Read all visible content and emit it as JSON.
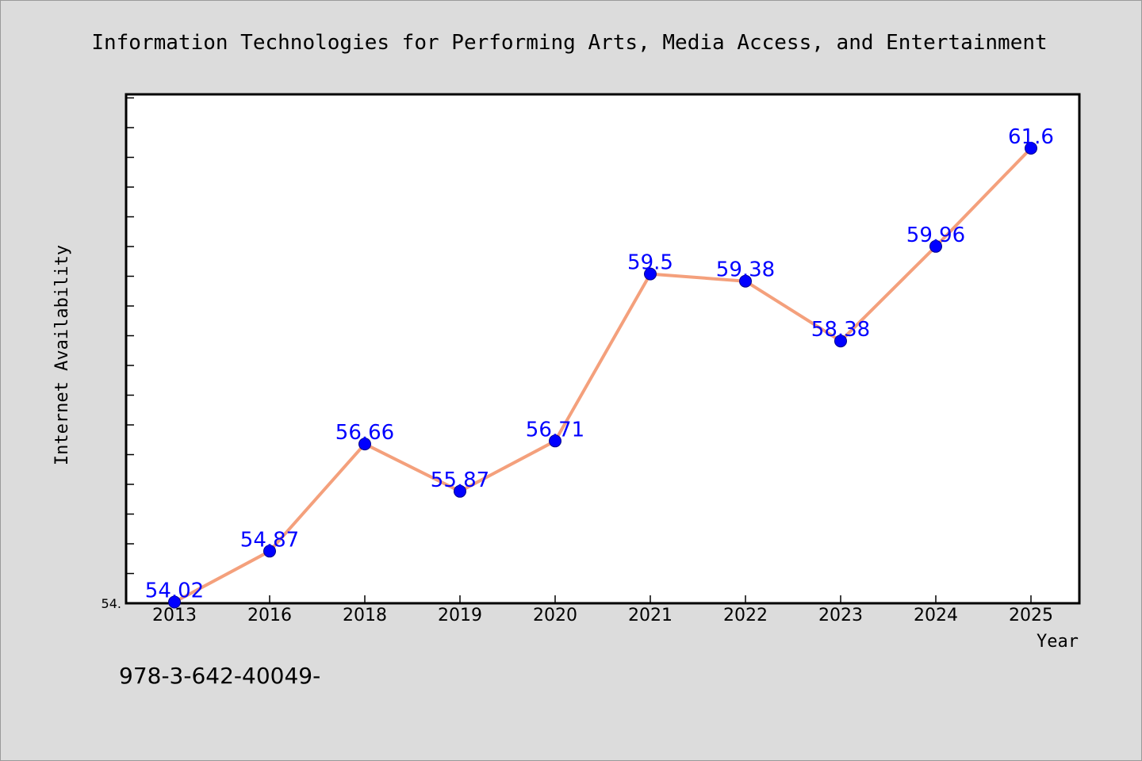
{
  "footer_text": "978-3-642-40049-",
  "chart_data": {
    "type": "line",
    "title": "Information Technologies for Performing Arts, Media Access, and Entertainment",
    "xlabel": "Year",
    "ylabel": "Internet Availability",
    "categories": [
      "2013",
      "2016",
      "2018",
      "2019",
      "2020",
      "2021",
      "2022",
      "2023",
      "2024",
      "2025"
    ],
    "series": [
      {
        "values": [
          54.02,
          54.87,
          56.66,
          55.87,
          56.71,
          59.5,
          59.38,
          58.38,
          59.96,
          61.6
        ],
        "data_labels": [
          "54.02",
          "54.87",
          "56.66",
          "55.87",
          "56.71",
          "59.5",
          "59.38",
          "58.38",
          "59.96",
          "61.6"
        ]
      }
    ],
    "y_tick_labels": [
      "54."
    ],
    "ylim": [
      54.0,
      62.5
    ],
    "grid": false,
    "colors": {
      "line": "#f4a07c",
      "marker": "#0000ff",
      "data_label": "#0000ff",
      "plot_background": "#ffffff",
      "page_background": "#dcdcdc"
    }
  }
}
